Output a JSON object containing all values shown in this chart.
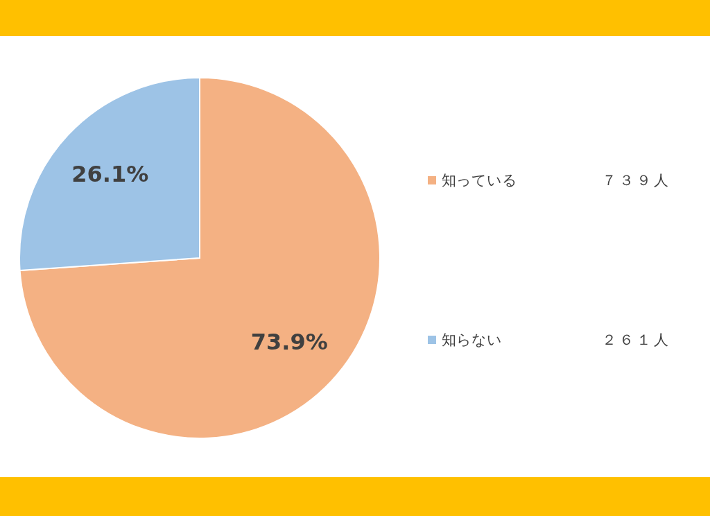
{
  "chart_data": {
    "type": "pie",
    "categories": [
      "知っている",
      "知らない"
    ],
    "values": [
      73.9,
      26.1
    ],
    "colors": [
      "#f4b183",
      "#9dc3e6"
    ],
    "value_labels": [
      "73.9%",
      "26.1%"
    ],
    "legend": "right",
    "annotations": [
      "７３９人",
      "２６１人"
    ]
  }
}
